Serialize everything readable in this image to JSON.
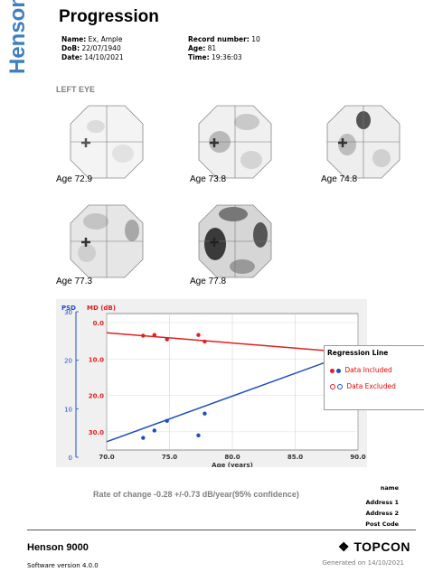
{
  "brand_vertical": "Henson",
  "title": "Progression",
  "patient": {
    "name_label": "Name:",
    "name_value": "Ex, Ample",
    "dob_label": "DoB:",
    "dob_value": "22/07/1940",
    "date_label": "Date:",
    "date_value": "14/10/2021",
    "record_label": "Record number:",
    "record_value": "10",
    "age_label": "Age:",
    "age_value": "81",
    "time_label": "Time:",
    "time_value": "19:36:03"
  },
  "eye_label": "LEFT EYE",
  "fields": [
    {
      "age": "Age 72.9"
    },
    {
      "age": "Age 73.8"
    },
    {
      "age": "Age 74.8"
    },
    {
      "age": "Age 77.3"
    },
    {
      "age": "Age 77.8"
    }
  ],
  "chart_data": {
    "type": "scatter",
    "xlabel": "Age (years)",
    "left_axis_outer_label": "PSD",
    "left_axis_inner_label": "MD (dB)",
    "xlim": [
      70,
      90
    ],
    "x_ticks": [
      "70.0",
      "75.0",
      "80.0",
      "85.0",
      "90.0"
    ],
    "md_ylim": [
      0,
      35
    ],
    "md_ticks": [
      "0.0",
      "10.0",
      "20.0",
      "30.0"
    ],
    "psd_ylim": [
      0,
      30
    ],
    "psd_ticks": [
      "0",
      "10",
      "20",
      "30"
    ],
    "series": [
      {
        "name": "MD",
        "color": "#e02020",
        "x": [
          72.9,
          73.8,
          74.8,
          77.3,
          77.8
        ],
        "y": [
          3.6,
          3.4,
          4.6,
          3.4,
          5.2
        ]
      },
      {
        "name": "PSD",
        "color": "#1f4fbf",
        "x": [
          72.9,
          73.8,
          74.8,
          77.3,
          77.8
        ],
        "y": [
          4.0,
          5.5,
          7.5,
          4.5,
          9.0
        ]
      }
    ],
    "regression_md": {
      "x": [
        70,
        90
      ],
      "y": [
        2.8,
        8.4
      ]
    },
    "regression_psd": {
      "x": [
        70,
        90
      ],
      "y": [
        3.2,
        22.0
      ]
    },
    "legend": {
      "title": "Regression Line",
      "included": "Data Included",
      "excluded": "Data Excluded"
    }
  },
  "rate": "Rate of change -0.28 +/-0.73 dB/year(95% confidence)",
  "address": {
    "name": "name",
    "line1": "Address 1",
    "line2": "Address 2",
    "post": "Post Code"
  },
  "footer": {
    "product": "Henson 9000",
    "software": "Software version 4.0.0",
    "brand": "TOPCON",
    "generated": "Generated on 14/10/2021"
  }
}
